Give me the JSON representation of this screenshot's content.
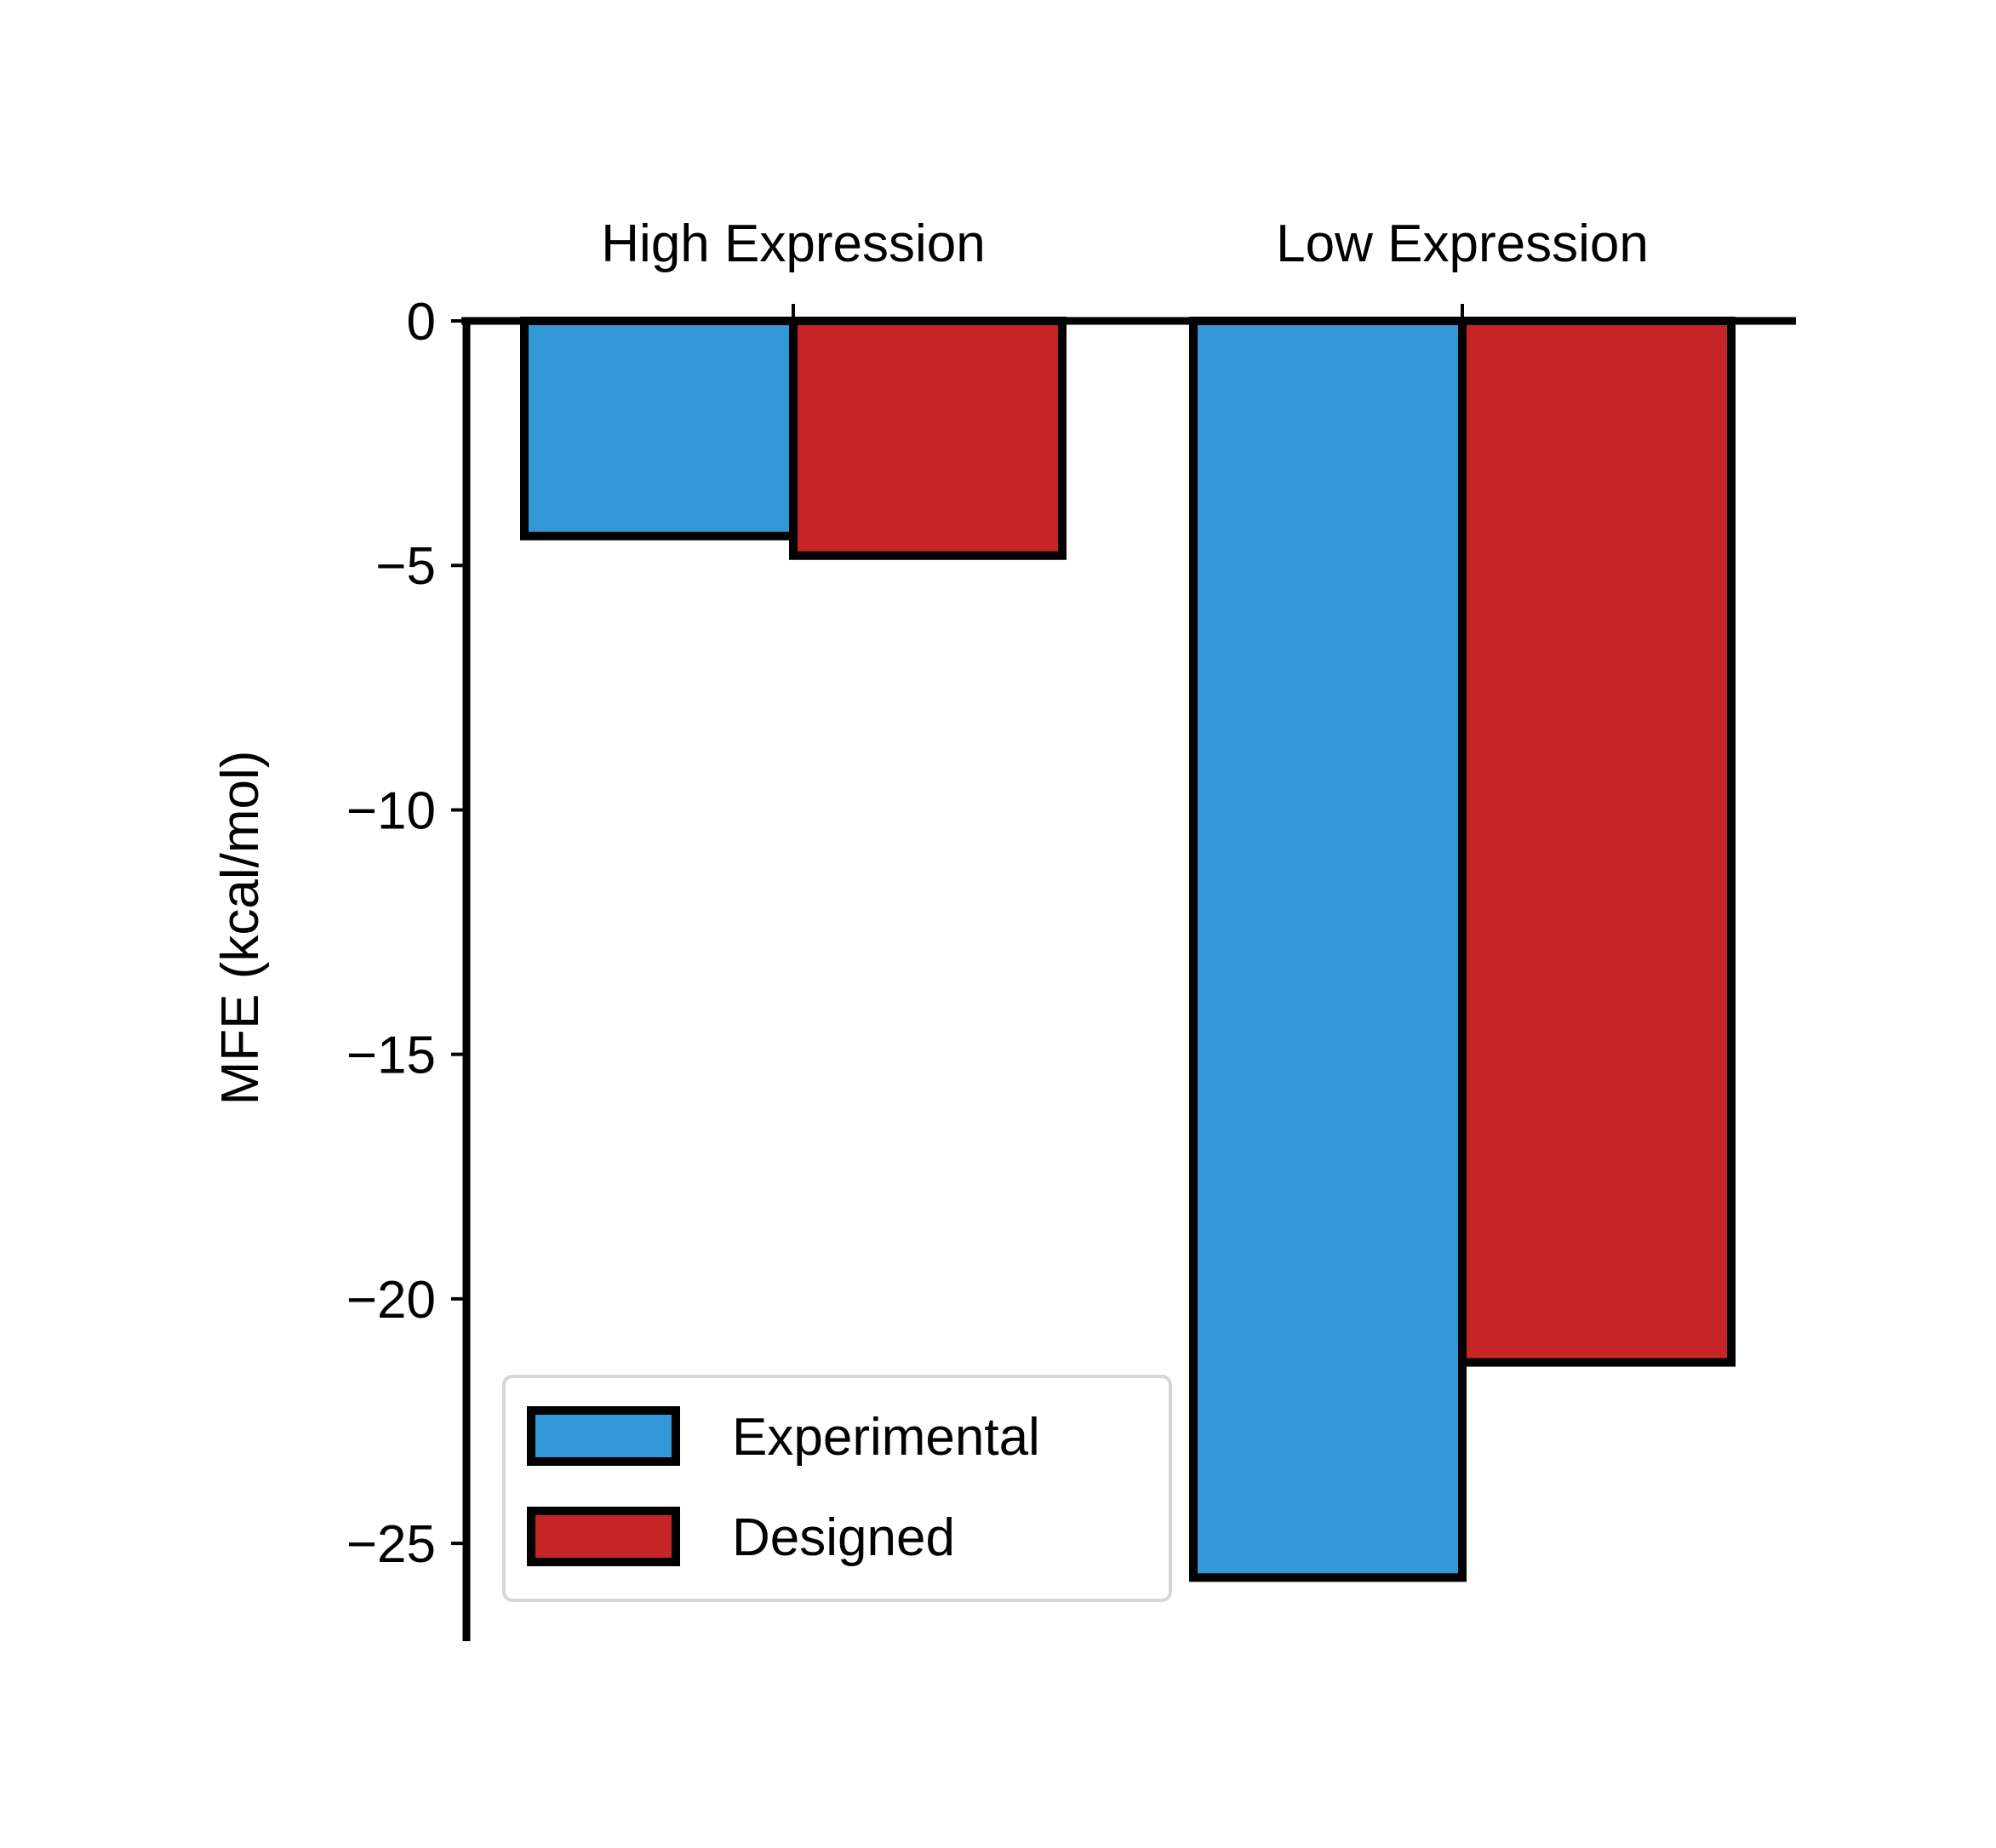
{
  "chart_data": {
    "type": "bar",
    "title": "",
    "xlabel": "",
    "ylabel": "MFE (kcal/mol)",
    "categories": [
      "High Expression",
      "Low Expression"
    ],
    "series": [
      {
        "name": "Experimental",
        "color": "#3399d6",
        "values": [
          -4.4,
          -25.7
        ]
      },
      {
        "name": "Designed",
        "color": "#c62527",
        "values": [
          -4.8,
          -21.3
        ]
      }
    ],
    "ylim": [
      -27,
      0
    ],
    "yticks": [
      0,
      -5,
      -10,
      -15,
      -20,
      -25
    ],
    "ytick_labels": [
      "0",
      "−5",
      "−10",
      "−15",
      "−20",
      "−25"
    ],
    "x_axis_position": "top",
    "grid": false,
    "legend": {
      "position": "lower-left"
    },
    "bar_edge_color": "#000000"
  }
}
